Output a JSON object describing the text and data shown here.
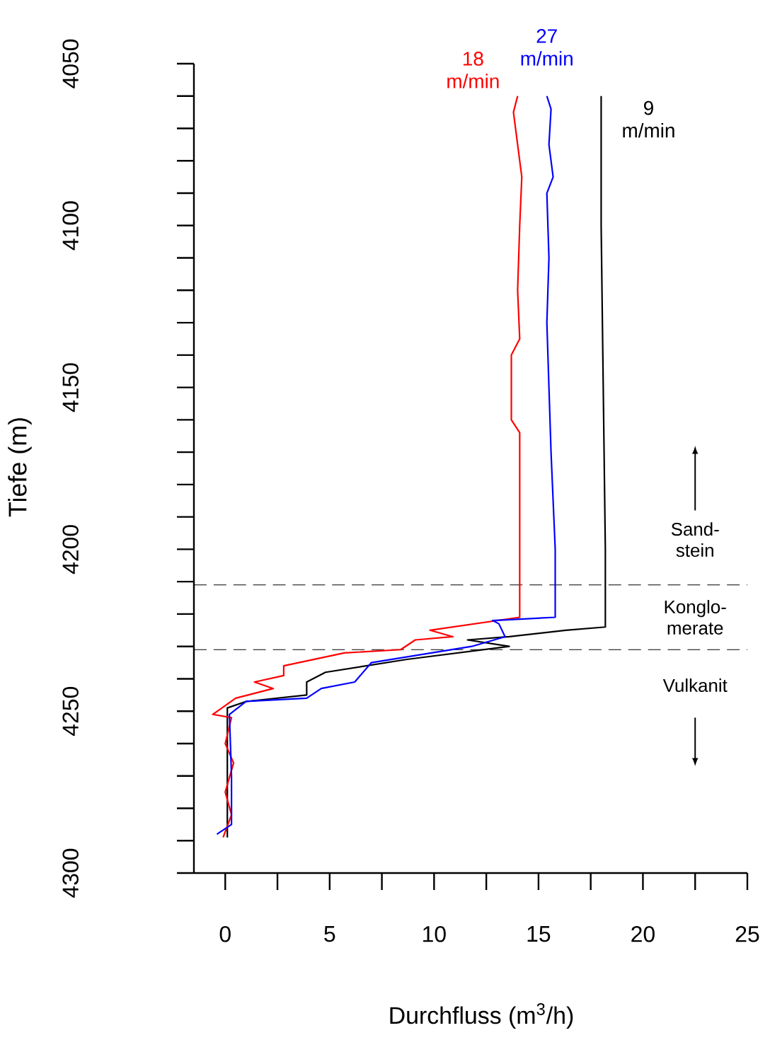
{
  "chart_data": {
    "type": "line",
    "xlabel": "Durchfluss (m$^{3}$/h)",
    "ylabel": "Tiefe (m)",
    "xlim": [
      -1.5,
      25
    ],
    "ylim": [
      4300,
      4050
    ],
    "xticks": [
      0,
      {
        "value": 2.5,
        "label": null
      },
      5,
      {
        "value": 7.5,
        "label": null
      },
      10,
      {
        "value": 12.5,
        "label": null
      },
      15,
      {
        "value": 17.5,
        "label": null
      },
      20,
      {
        "value": 22.5,
        "label": null
      },
      25
    ],
    "yticks": [
      4050,
      {
        "value": 4060,
        "label": null
      },
      {
        "value": 4070,
        "label": null
      },
      {
        "value": 4080,
        "label": null
      },
      {
        "value": 4090,
        "label": null
      },
      4100,
      {
        "value": 4110,
        "label": null
      },
      {
        "value": 4120,
        "label": null
      },
      {
        "value": 4130,
        "label": null
      },
      {
        "value": 4140,
        "label": null
      },
      4150,
      {
        "value": 4160,
        "label": null
      },
      {
        "value": 4170,
        "label": null
      },
      {
        "value": 4180,
        "label": null
      },
      {
        "value": 4190,
        "label": null
      },
      4200,
      {
        "value": 4210,
        "label": null
      },
      {
        "value": 4220,
        "label": null
      },
      {
        "value": 4230,
        "label": null
      },
      {
        "value": 4240,
        "label": null
      },
      4250,
      {
        "value": 4260,
        "label": null
      },
      {
        "value": 4270,
        "label": null
      },
      {
        "value": 4280,
        "label": null
      },
      {
        "value": 4290,
        "label": null
      },
      4300
    ],
    "grid": false,
    "line_style": "solid",
    "ref_lines": [
      {
        "axis": "y",
        "value": 4211,
        "color": "#000000",
        "line_style": "dashed"
      },
      {
        "axis": "y",
        "value": 4231,
        "color": "#000000",
        "line_style": "dashed"
      }
    ],
    "annotations": [
      "Sand-stein",
      "Konglo-merate",
      "Vulkanit"
    ],
    "series": [
      {
        "name": "9 m/min",
        "color": "#000000",
        "x": [
          18.0,
          18.0,
          18.1,
          18.2,
          18.2,
          16.3,
          13.6,
          11.6,
          13.6,
          8.7,
          4.8,
          3.9,
          3.9,
          1.0,
          0.1,
          0.1
        ],
        "values": [
          4060,
          4100,
          4150,
          4200,
          4224,
          4225,
          4227,
          4228,
          4230,
          4234,
          4238,
          4241,
          4245,
          4247,
          4249,
          4289
        ]
      },
      {
        "name": "18 m/min",
        "color": "#ff0000",
        "x": [
          14.0,
          13.8,
          14.2,
          14.1,
          14.0,
          14.1,
          13.7,
          13.7,
          14.1,
          14.1,
          9.8,
          10.9,
          9.1,
          8.4,
          5.7,
          2.8,
          2.8,
          1.4,
          2.3,
          0.5,
          -0.6,
          0.3,
          0.0,
          0.4,
          0.0,
          0.3,
          -0.1
        ],
        "values": [
          4060,
          4065,
          4085,
          4100,
          4120,
          4135,
          4140,
          4160,
          4164,
          4221,
          4225,
          4227,
          4228,
          4231,
          4232,
          4236,
          4239,
          4241,
          4243,
          4246,
          4251,
          4252,
          4260,
          4266,
          4275,
          4282,
          4289
        ]
      },
      {
        "name": "27 m/min",
        "color": "#0000ff",
        "x": [
          15.4,
          15.6,
          15.5,
          15.7,
          15.4,
          15.5,
          15.4,
          15.5,
          15.6,
          15.8,
          15.8,
          12.8,
          13.1,
          13.4,
          11.8,
          7.0,
          6.2,
          4.6,
          3.9,
          1.0,
          0.2,
          0.3,
          0.3,
          -0.4
        ],
        "values": [
          4060,
          4064,
          4075,
          4085,
          4090,
          4110,
          4130,
          4150,
          4170,
          4200,
          4221,
          4222,
          4223,
          4227,
          4230,
          4235,
          4241,
          4243,
          4246,
          4247,
          4251,
          4270,
          4285,
          4288
        ]
      }
    ]
  }
}
